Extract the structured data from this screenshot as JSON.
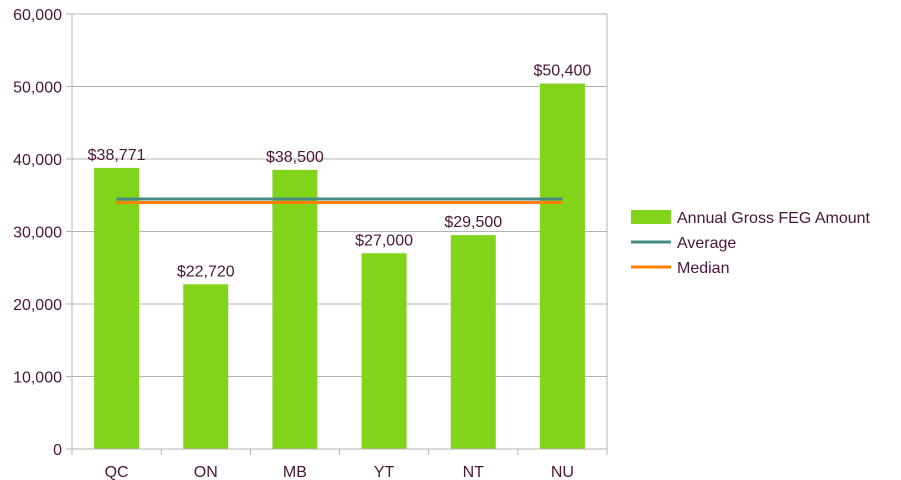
{
  "chart_data": {
    "type": "bar",
    "categories": [
      "QC",
      "ON",
      "MB",
      "YT",
      "NT",
      "NU"
    ],
    "values": [
      38771,
      22720,
      38500,
      27000,
      29500,
      50400
    ],
    "data_labels": [
      "$38,771",
      "$22,720",
      "$38,500",
      "$27,000",
      "$29,500",
      "$50,400"
    ],
    "average": 34482,
    "median": 34000,
    "ylim": [
      0,
      60000
    ],
    "yticks": [
      0,
      10000,
      20000,
      30000,
      40000,
      50000,
      60000
    ],
    "ytick_labels": [
      "0",
      "10,000",
      "20,000",
      "30,000",
      "40,000",
      "50,000",
      "60,000"
    ],
    "grid": true,
    "legend_position": "right",
    "legend": [
      {
        "name": "Annual Gross FEG Amount",
        "kind": "bar",
        "color": "#81d41a"
      },
      {
        "name": "Average",
        "kind": "line",
        "color": "#468a86"
      },
      {
        "name": "Median",
        "kind": "line",
        "color": "#ff8000"
      }
    ],
    "colors": {
      "bar": "#81d41a",
      "average": "#468a86",
      "median": "#ff8000",
      "grid": "#b3b3b3",
      "text": "#4a1538"
    }
  }
}
